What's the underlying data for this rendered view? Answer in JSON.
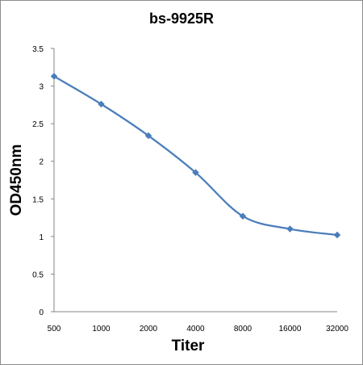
{
  "chart_data": {
    "type": "line",
    "title": "bs-9925R",
    "xlabel": "Titer",
    "ylabel": "OD450nm",
    "categories": [
      "500",
      "1000",
      "2000",
      "4000",
      "8000",
      "16000",
      "32000"
    ],
    "series": [
      {
        "values": [
          3.13,
          2.76,
          2.34,
          1.85,
          1.27,
          1.1,
          1.02
        ],
        "color": "#4a7ebb",
        "marker": "diamond"
      }
    ],
    "ylim": [
      0,
      3.5
    ],
    "yticks": [
      "0",
      "0.5",
      "1",
      "1.5",
      "2",
      "2.5",
      "3",
      "3.5"
    ],
    "grid": false,
    "legend": "none",
    "smooth": true
  }
}
